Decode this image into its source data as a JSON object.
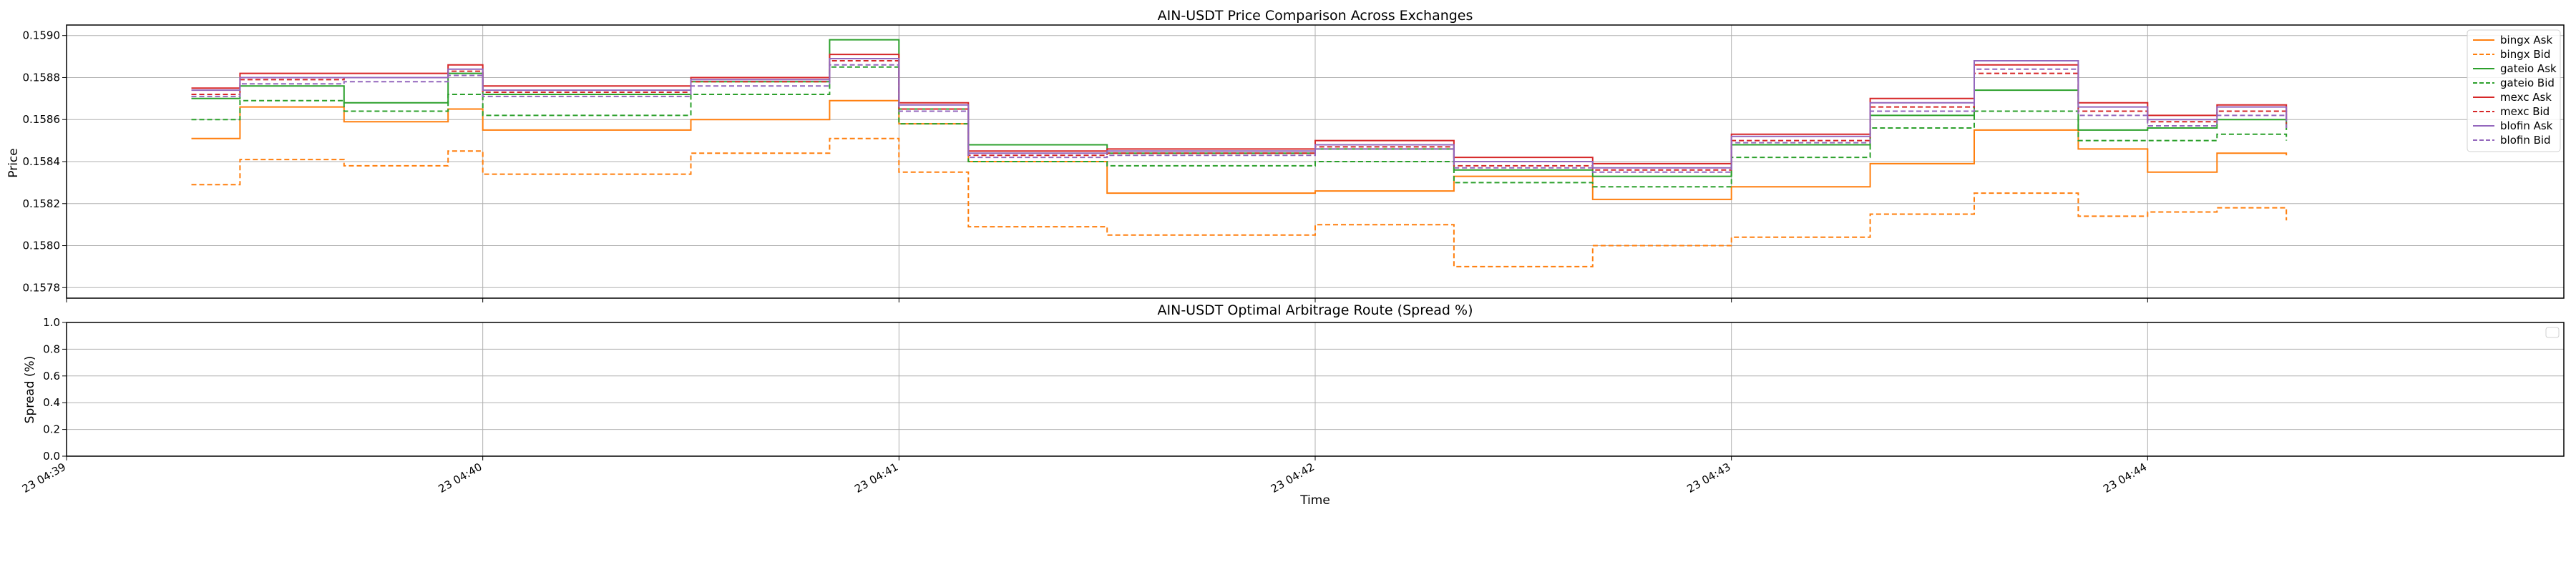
{
  "chart_data": [
    {
      "type": "line",
      "title": "AIN-USDT Price Comparison Across Exchanges",
      "xlabel": "",
      "ylabel": "Price",
      "ylim": [
        0.15775,
        0.15905
      ],
      "yticks": [
        "0.1578",
        "0.1580",
        "0.1582",
        "0.1584",
        "0.1586",
        "0.1588",
        "0.1590"
      ],
      "x_range": [
        "04:39",
        "04:45"
      ],
      "grid": true,
      "legend": "top-right",
      "series": [
        {
          "name": "bingx Ask",
          "color": "#ff7f0e",
          "style": "solid",
          "x": [
            "04:39:18",
            "04:39:25",
            "04:39:40",
            "04:39:55",
            "04:40:00",
            "04:40:30",
            "04:40:50",
            "04:41:00",
            "04:41:10",
            "04:41:30",
            "04:42:00",
            "04:42:20",
            "04:42:40",
            "04:43:00",
            "04:43:20",
            "04:43:35",
            "04:43:50",
            "04:44:00",
            "04:44:10",
            "04:44:20"
          ],
          "values": [
            0.15851,
            0.15866,
            0.15859,
            0.15865,
            0.15855,
            0.1586,
            0.15869,
            0.15858,
            0.1584,
            0.15825,
            0.15826,
            0.15833,
            0.15822,
            0.15828,
            0.15839,
            0.15855,
            0.15846,
            0.15835,
            0.15844,
            0.15843
          ]
        },
        {
          "name": "bingx Bid",
          "color": "#ff7f0e",
          "style": "dashed",
          "x": [
            "04:39:18",
            "04:39:25",
            "04:39:40",
            "04:39:55",
            "04:40:00",
            "04:40:30",
            "04:40:50",
            "04:41:00",
            "04:41:10",
            "04:41:30",
            "04:42:00",
            "04:42:20",
            "04:42:40",
            "04:43:00",
            "04:43:20",
            "04:43:35",
            "04:43:50",
            "04:44:00",
            "04:44:10",
            "04:44:20"
          ],
          "values": [
            0.15829,
            0.15841,
            0.15838,
            0.15845,
            0.15834,
            0.15844,
            0.15851,
            0.15835,
            0.15809,
            0.15805,
            0.1581,
            0.1579,
            0.158,
            0.15804,
            0.15815,
            0.15825,
            0.15814,
            0.15816,
            0.15818,
            0.15812
          ]
        },
        {
          "name": "gateio Ask",
          "color": "#2ca02c",
          "style": "solid",
          "x": [
            "04:39:18",
            "04:39:25",
            "04:39:40",
            "04:39:55",
            "04:40:00",
            "04:40:30",
            "04:40:50",
            "04:41:00",
            "04:41:10",
            "04:41:30",
            "04:42:00",
            "04:42:20",
            "04:42:40",
            "04:43:00",
            "04:43:20",
            "04:43:35",
            "04:43:50",
            "04:44:00",
            "04:44:10",
            "04:44:20"
          ],
          "values": [
            0.1587,
            0.15876,
            0.15868,
            0.15882,
            0.15872,
            0.15878,
            0.15898,
            0.15865,
            0.15848,
            0.15844,
            0.15846,
            0.15836,
            0.15833,
            0.15848,
            0.15862,
            0.15874,
            0.15855,
            0.15856,
            0.1586,
            0.15855
          ]
        },
        {
          "name": "gateio Bid",
          "color": "#2ca02c",
          "style": "dashed",
          "x": [
            "04:39:18",
            "04:39:25",
            "04:39:40",
            "04:39:55",
            "04:40:00",
            "04:40:30",
            "04:40:50",
            "04:41:00",
            "04:41:10",
            "04:41:30",
            "04:42:00",
            "04:42:20",
            "04:42:40",
            "04:43:00",
            "04:43:20",
            "04:43:35",
            "04:43:50",
            "04:44:00",
            "04:44:10",
            "04:44:20"
          ],
          "values": [
            0.1586,
            0.15869,
            0.15864,
            0.15872,
            0.15862,
            0.15872,
            0.15885,
            0.15858,
            0.1584,
            0.15838,
            0.1584,
            0.1583,
            0.15828,
            0.15842,
            0.15856,
            0.15864,
            0.1585,
            0.1585,
            0.15853,
            0.1585
          ]
        },
        {
          "name": "mexc Ask",
          "color": "#d62728",
          "style": "solid",
          "x": [
            "04:39:18",
            "04:39:25",
            "04:39:40",
            "04:39:55",
            "04:40:00",
            "04:40:30",
            "04:40:50",
            "04:41:00",
            "04:41:10",
            "04:41:30",
            "04:42:00",
            "04:42:20",
            "04:42:40",
            "04:43:00",
            "04:43:20",
            "04:43:35",
            "04:43:50",
            "04:44:00",
            "04:44:10",
            "04:44:20"
          ],
          "values": [
            0.15875,
            0.15882,
            0.15882,
            0.15886,
            0.15876,
            0.1588,
            0.15891,
            0.15868,
            0.15845,
            0.15846,
            0.1585,
            0.15842,
            0.15839,
            0.15853,
            0.1587,
            0.15886,
            0.15868,
            0.15862,
            0.15867,
            0.15862
          ]
        },
        {
          "name": "mexc Bid",
          "color": "#d62728",
          "style": "dashed",
          "x": [
            "04:39:18",
            "04:39:25",
            "04:39:40",
            "04:39:55",
            "04:40:00",
            "04:40:30",
            "04:40:50",
            "04:41:00",
            "04:41:10",
            "04:41:30",
            "04:42:00",
            "04:42:20",
            "04:42:40",
            "04:43:00",
            "04:43:20",
            "04:43:35",
            "04:43:50",
            "04:44:00",
            "04:44:10",
            "04:44:20"
          ],
          "values": [
            0.15872,
            0.15879,
            0.1588,
            0.15883,
            0.15873,
            0.15878,
            0.15888,
            0.15865,
            0.15843,
            0.15844,
            0.15847,
            0.15838,
            0.15836,
            0.1585,
            0.15866,
            0.15882,
            0.15864,
            0.15859,
            0.15864,
            0.15858
          ]
        },
        {
          "name": "blofin Ask",
          "color": "#9467bd",
          "style": "solid",
          "x": [
            "04:39:18",
            "04:39:25",
            "04:39:40",
            "04:39:55",
            "04:40:00",
            "04:40:30",
            "04:40:50",
            "04:41:00",
            "04:41:10",
            "04:41:30",
            "04:42:00",
            "04:42:20",
            "04:42:40",
            "04:43:00",
            "04:43:20",
            "04:43:35",
            "04:43:50",
            "04:44:00",
            "04:44:10",
            "04:44:20"
          ],
          "values": [
            0.15874,
            0.1588,
            0.1588,
            0.15884,
            0.15874,
            0.15879,
            0.15889,
            0.15867,
            0.15844,
            0.15845,
            0.15848,
            0.1584,
            0.15837,
            0.15852,
            0.15868,
            0.15888,
            0.15866,
            0.1586,
            0.15866,
            0.1586
          ]
        },
        {
          "name": "blofin Bid",
          "color": "#9467bd",
          "style": "dashed",
          "x": [
            "04:39:18",
            "04:39:25",
            "04:39:40",
            "04:39:55",
            "04:40:00",
            "04:40:30",
            "04:40:50",
            "04:41:00",
            "04:41:10",
            "04:41:30",
            "04:42:00",
            "04:42:20",
            "04:42:40",
            "04:43:00",
            "04:43:20",
            "04:43:35",
            "04:43:50",
            "04:44:00",
            "04:44:10",
            "04:44:20"
          ],
          "values": [
            0.15871,
            0.15877,
            0.15878,
            0.15881,
            0.15871,
            0.15876,
            0.15886,
            0.15864,
            0.15842,
            0.15843,
            0.15846,
            0.15837,
            0.15835,
            0.15849,
            0.15864,
            0.15884,
            0.15862,
            0.15857,
            0.15862,
            0.15856
          ]
        }
      ]
    },
    {
      "type": "line",
      "title": "AIN-USDT Optimal Arbitrage Route (Spread %)",
      "xlabel": "Time",
      "ylabel": "Spread (%)",
      "ylim": [
        0.0,
        1.0
      ],
      "yticks": [
        "0.0",
        "0.2",
        "0.4",
        "0.6",
        "0.8",
        "1.0"
      ],
      "xticks": [
        "23 04:39",
        "23 04:40",
        "23 04:41",
        "23 04:42",
        "23 04:43",
        "23 04:44"
      ],
      "grid": true,
      "legend": "top-right",
      "series": []
    }
  ]
}
